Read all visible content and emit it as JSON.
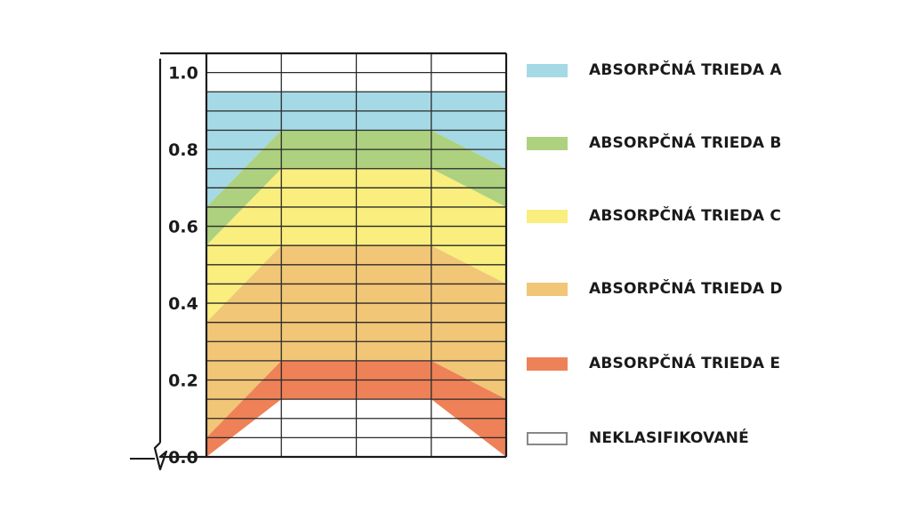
{
  "chart_data": {
    "type": "area",
    "title": "",
    "xlabel": "",
    "ylabel": "",
    "ylim": [
      0,
      1.05
    ],
    "xlim": [
      0,
      4
    ],
    "yticks": [
      "0.0",
      "0.2",
      "0.4",
      "0.6",
      "0.8",
      "1.0"
    ],
    "ytick_values": [
      0,
      0.2,
      0.4,
      0.6,
      0.8,
      1.0
    ],
    "grid": true,
    "legend_position": "right",
    "x": [
      0,
      1,
      3,
      4
    ],
    "bands": [
      {
        "name": "ABSORPČNÁ TRIEDA A",
        "color": "#a5d9e6",
        "lower": [
          0.65,
          0.85,
          0.85,
          0.75
        ],
        "upper": [
          0.95,
          0.95,
          0.95,
          0.95
        ]
      },
      {
        "name": "ABSORPČNÁ TRIEDA B",
        "color": "#aed17f",
        "lower": [
          0.55,
          0.75,
          0.75,
          0.65
        ],
        "upper": [
          0.65,
          0.85,
          0.85,
          0.75
        ]
      },
      {
        "name": "ABSORPČNÁ TRIEDA C",
        "color": "#f9ee7e",
        "lower": [
          0.35,
          0.55,
          0.55,
          0.45
        ],
        "upper": [
          0.55,
          0.75,
          0.75,
          0.65
        ]
      },
      {
        "name": "ABSORPČNÁ TRIEDA D",
        "color": "#f1c677",
        "lower": [
          0.05,
          0.25,
          0.25,
          0.15
        ],
        "upper": [
          0.35,
          0.55,
          0.55,
          0.45
        ]
      },
      {
        "name": "ABSORPČNÁ TRIEDA E",
        "color": "#ee8157",
        "lower": [
          0.0,
          0.15,
          0.15,
          0.0
        ],
        "upper": [
          0.05,
          0.25,
          0.25,
          0.15
        ]
      }
    ],
    "unclassified": {
      "name": "NEKLASIFIKOVANÉ",
      "color": "#ffffff",
      "border": "#888888"
    }
  },
  "legend": [
    {
      "label": "ABSORPČNÁ TRIEDA A",
      "color": "#a5d9e6"
    },
    {
      "label": "ABSORPČNÁ TRIEDA B",
      "color": "#aed17f"
    },
    {
      "label": "ABSORPČNÁ TRIEDA C",
      "color": "#f9ee7e"
    },
    {
      "label": "ABSORPČNÁ TRIEDA D",
      "color": "#f1c677"
    },
    {
      "label": "ABSORPČNÁ TRIEDA E",
      "color": "#ee8157"
    },
    {
      "label": "NEKLASIFIKOVANÉ",
      "color": "#ffffff"
    }
  ]
}
